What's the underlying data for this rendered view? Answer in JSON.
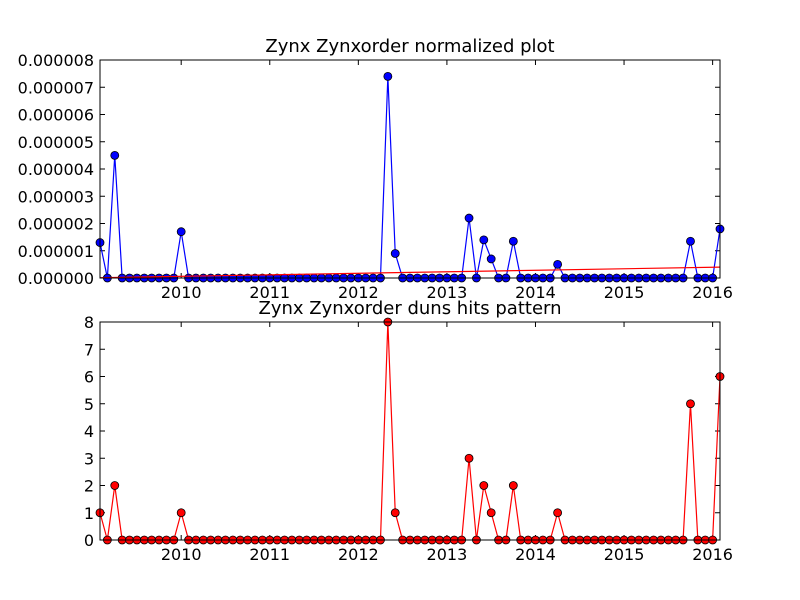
{
  "chart_data": [
    {
      "type": "line",
      "title": "Zynx Zynxorder normalized plot",
      "xlabel": "",
      "ylabel": "",
      "x_start": "2009-02",
      "x_range": [
        "2009-02",
        "2016-02"
      ],
      "xticks": [
        "2010",
        "2011",
        "2012",
        "2013",
        "2014",
        "2015",
        "2016"
      ],
      "ylim": [
        0,
        8e-06
      ],
      "yticks": [
        "0.000000",
        "0.000001",
        "0.000002",
        "0.000003",
        "0.000004",
        "0.000005",
        "0.000006",
        "0.000007",
        "0.000008"
      ],
      "grid": false,
      "series": [
        {
          "color": "#0000ff",
          "marker": "circle",
          "values": [
            1.3e-06,
            0,
            4.5e-06,
            0,
            0,
            0,
            0,
            0,
            0,
            0,
            0,
            1.7e-06,
            0,
            0,
            0,
            0,
            0,
            0,
            0,
            0,
            0,
            0,
            0,
            0,
            0,
            0,
            0,
            0,
            0,
            0,
            0,
            0,
            0,
            0,
            0,
            0,
            0,
            0,
            0,
            7.4e-06,
            9e-07,
            0,
            0,
            0,
            0,
            0,
            0,
            0,
            0,
            0,
            2.2e-06,
            0,
            1.4e-06,
            7e-07,
            0,
            0,
            1.35e-06,
            0,
            0,
            0,
            0,
            0,
            5e-07,
            0,
            0,
            0,
            0,
            0,
            0,
            0,
            0,
            0,
            0,
            0,
            0,
            0,
            0,
            0,
            0,
            0,
            1.35e-06,
            0,
            0,
            0,
            1.8e-06
          ]
        },
        {
          "color": "#ff0000",
          "marker": "none",
          "style": "trend",
          "values": [
            1e-08,
            4e-07
          ]
        }
      ]
    },
    {
      "type": "line",
      "title": "Zynx Zynxorder duns hits pattern",
      "xlabel": "",
      "ylabel": "",
      "x_start": "2009-02",
      "x_range": [
        "2009-02",
        "2016-02"
      ],
      "xticks": [
        "2010",
        "2011",
        "2012",
        "2013",
        "2014",
        "2015",
        "2016"
      ],
      "ylim": [
        0,
        8
      ],
      "yticks": [
        "0",
        "1",
        "2",
        "3",
        "4",
        "5",
        "6",
        "7",
        "8"
      ],
      "grid": false,
      "series": [
        {
          "color": "#ff0000",
          "marker": "circle",
          "values": [
            1,
            0,
            2,
            0,
            0,
            0,
            0,
            0,
            0,
            0,
            0,
            1,
            0,
            0,
            0,
            0,
            0,
            0,
            0,
            0,
            0,
            0,
            0,
            0,
            0,
            0,
            0,
            0,
            0,
            0,
            0,
            0,
            0,
            0,
            0,
            0,
            0,
            0,
            0,
            8,
            1,
            0,
            0,
            0,
            0,
            0,
            0,
            0,
            0,
            0,
            3,
            0,
            2,
            1,
            0,
            0,
            2,
            0,
            0,
            0,
            0,
            0,
            1,
            0,
            0,
            0,
            0,
            0,
            0,
            0,
            0,
            0,
            0,
            0,
            0,
            0,
            0,
            0,
            0,
            0,
            5,
            0,
            0,
            0,
            6
          ]
        }
      ]
    }
  ]
}
